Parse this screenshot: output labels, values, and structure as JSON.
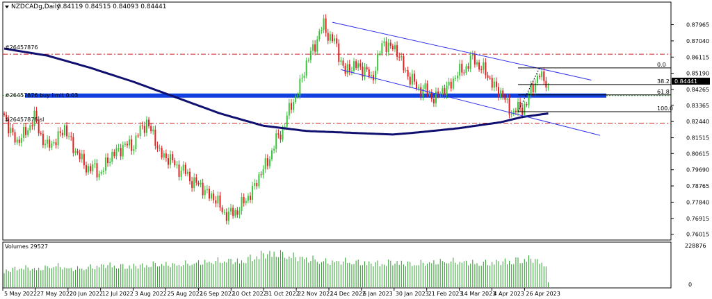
{
  "header": {
    "symbol": "NZDCADg,Daily",
    "ohlc": "0.84119 0.84515 0.84093 0.84441"
  },
  "volume_panel": {
    "label": "Volumes 29527",
    "max_label": "228876",
    "zero_label": "0"
  },
  "order_labels": {
    "top": "#26457876",
    "buy_limit": "#26457876 buy limit 0.03",
    "bottom": "#26457876 sl"
  },
  "current_price_label": "0.84441",
  "fib_labels": [
    "0.0",
    "38.2",
    "61.8",
    "100.0"
  ],
  "colors": {
    "bull": "#3cc43c",
    "bear": "#e02020",
    "volume": "#2e9e2e",
    "ma": "#101070",
    "channel": "#3030ee",
    "buy_limit_band": "#1040dd",
    "order_dash": "#d02020",
    "grid_bg": "#ffffff"
  },
  "chart_data": [
    {
      "type": "candlestick",
      "title": "NZDCADg,Daily",
      "ylim": [
        0.758,
        0.885
      ],
      "y_ticks": [
        "0.87965",
        "0.87040",
        "0.86115",
        "0.85190",
        "0.84265",
        "0.83365",
        "0.82440",
        "0.81515",
        "0.80615",
        "0.79690",
        "0.78765",
        "0.77840",
        "0.76915",
        "0.76015"
      ],
      "x_ticks": [
        "5 May 2022",
        "27 May 2022",
        "20 Jun 2022",
        "12 Jul 2022",
        "3 Aug 2022",
        "25 Aug 2022",
        "16 Sep 2022",
        "10 Oct 2022",
        "31 Oct 2022",
        "22 Nov 2022",
        "14 Dec 2022",
        "6 Jan 2023",
        "30 Jan 2023",
        "21 Feb 2023",
        "14 Mar 2023",
        "4 Apr 2023",
        "26 Apr 2023"
      ],
      "close_path": [
        {
          "bar": 0,
          "close": 0.827
        },
        {
          "bar": 6,
          "close": 0.812
        },
        {
          "bar": 14,
          "close": 0.826
        },
        {
          "bar": 20,
          "close": 0.809
        },
        {
          "bar": 28,
          "close": 0.82
        },
        {
          "bar": 36,
          "close": 0.801
        },
        {
          "bar": 44,
          "close": 0.795
        },
        {
          "bar": 52,
          "close": 0.808
        },
        {
          "bar": 60,
          "close": 0.812
        },
        {
          "bar": 66,
          "close": 0.825
        },
        {
          "bar": 72,
          "close": 0.807
        },
        {
          "bar": 80,
          "close": 0.799
        },
        {
          "bar": 88,
          "close": 0.79
        },
        {
          "bar": 96,
          "close": 0.782
        },
        {
          "bar": 104,
          "close": 0.77
        },
        {
          "bar": 112,
          "close": 0.779
        },
        {
          "bar": 120,
          "close": 0.797
        },
        {
          "bar": 128,
          "close": 0.818
        },
        {
          "bar": 136,
          "close": 0.842
        },
        {
          "bar": 142,
          "close": 0.864
        },
        {
          "bar": 148,
          "close": 0.879
        },
        {
          "bar": 153,
          "close": 0.869
        },
        {
          "bar": 158,
          "close": 0.853
        },
        {
          "bar": 164,
          "close": 0.857
        },
        {
          "bar": 170,
          "close": 0.849
        },
        {
          "bar": 176,
          "close": 0.87
        },
        {
          "bar": 182,
          "close": 0.864
        },
        {
          "bar": 188,
          "close": 0.848
        },
        {
          "bar": 194,
          "close": 0.842
        },
        {
          "bar": 200,
          "close": 0.838
        },
        {
          "bar": 206,
          "close": 0.845
        },
        {
          "bar": 212,
          "close": 0.854
        },
        {
          "bar": 218,
          "close": 0.86
        },
        {
          "bar": 224,
          "close": 0.85
        },
        {
          "bar": 230,
          "close": 0.84
        },
        {
          "bar": 236,
          "close": 0.829
        },
        {
          "bar": 242,
          "close": 0.835
        },
        {
          "bar": 246,
          "close": 0.847
        },
        {
          "bar": 248,
          "close": 0.852
        },
        {
          "bar": 252,
          "close": 0.8444
        }
      ],
      "moving_average": [
        {
          "bar": 0,
          "value": 0.866
        },
        {
          "bar": 20,
          "value": 0.862
        },
        {
          "bar": 40,
          "value": 0.855
        },
        {
          "bar": 60,
          "value": 0.847
        },
        {
          "bar": 80,
          "value": 0.838
        },
        {
          "bar": 100,
          "value": 0.829
        },
        {
          "bar": 120,
          "value": 0.822
        },
        {
          "bar": 140,
          "value": 0.819
        },
        {
          "bar": 160,
          "value": 0.818
        },
        {
          "bar": 180,
          "value": 0.817
        },
        {
          "bar": 190,
          "value": 0.818
        },
        {
          "bar": 210,
          "value": 0.8205
        },
        {
          "bar": 230,
          "value": 0.824
        },
        {
          "bar": 240,
          "value": 0.827
        },
        {
          "bar": 252,
          "value": 0.829
        }
      ],
      "channel": {
        "upper": [
          {
            "bar": 152,
            "price": 0.881
          },
          {
            "bar": 272,
            "price": 0.848
          }
        ],
        "lower": [
          {
            "bar": 156,
            "price": 0.854
          },
          {
            "bar": 276,
            "price": 0.8165
          }
        ]
      },
      "order_levels": {
        "top": 0.8628,
        "buy_limit": 0.8392,
        "bottom": 0.8235
      },
      "fibonacci": {
        "levels": [
          0.0,
          38.2,
          61.8,
          100.0
        ],
        "prices": [
          0.855,
          0.8455,
          0.8396,
          0.83
        ]
      },
      "volume": {
        "ylim": [
          0,
          228876
        ],
        "shape": [
          0.45,
          0.55,
          0.5,
          0.6,
          0.5,
          0.55,
          0.62,
          0.58,
          0.6,
          0.64,
          0.62,
          0.66,
          0.7,
          0.74,
          0.72,
          0.9,
          0.95,
          0.85,
          0.78,
          0.7,
          0.72,
          0.68,
          0.66,
          0.7,
          0.64,
          0.68,
          0.72,
          0.7,
          0.66,
          0.7,
          0.74,
          0.8,
          0.6
        ]
      }
    }
  ]
}
